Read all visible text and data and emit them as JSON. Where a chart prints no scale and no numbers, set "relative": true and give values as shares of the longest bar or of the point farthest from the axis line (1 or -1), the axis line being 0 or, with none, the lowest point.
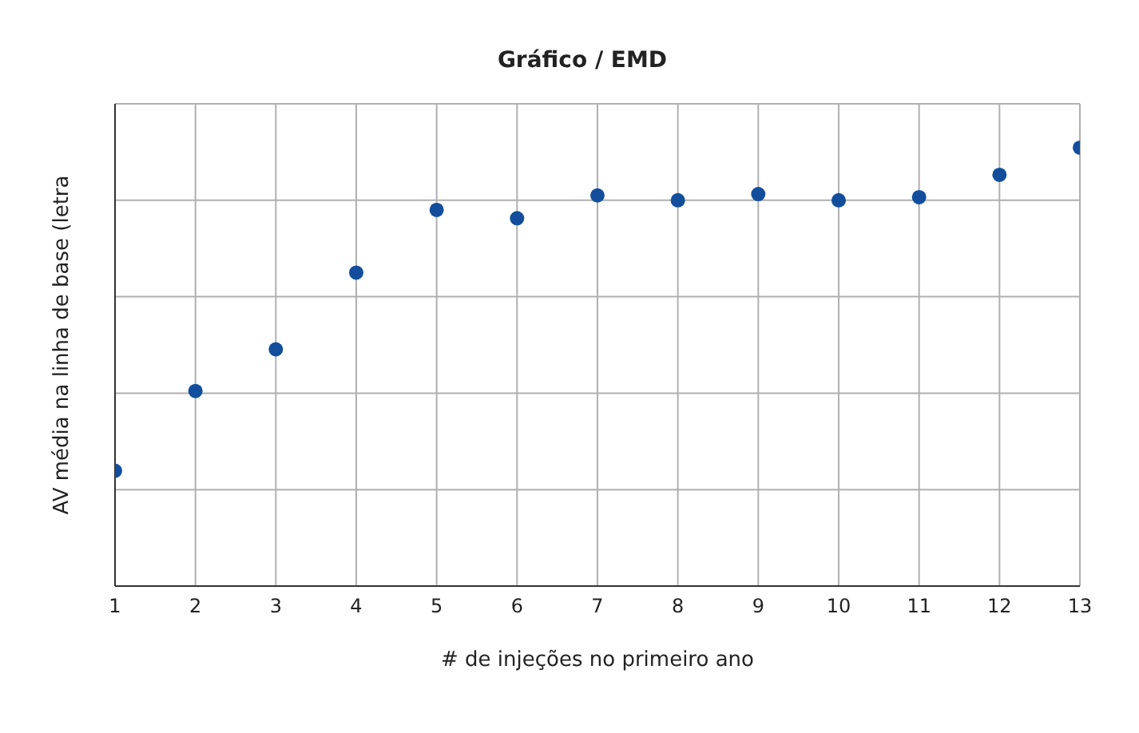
{
  "chart_data": {
    "type": "scatter",
    "title": "Gráfico / EMD",
    "xlabel": "# de injeções no primeiro ano",
    "ylabel": "AV média na linha de base (letra",
    "relative": true,
    "x": [
      1,
      2,
      3,
      4,
      5,
      6,
      7,
      8,
      9,
      10,
      11,
      12,
      13
    ],
    "series": [
      {
        "color": "#124e9c",
        "values": [
          0.263,
          0.445,
          0.54,
          0.715,
          0.858,
          0.839,
          0.891,
          0.88,
          0.894,
          0.88,
          0.887,
          0.938,
          1
        ]
      }
    ],
    "xlim": [
      1,
      13
    ],
    "xticks": [
      1,
      2,
      3,
      4,
      5,
      6,
      7,
      8,
      9,
      10,
      11,
      12,
      13
    ],
    "grid": true,
    "marker": "circle",
    "legend": false
  }
}
